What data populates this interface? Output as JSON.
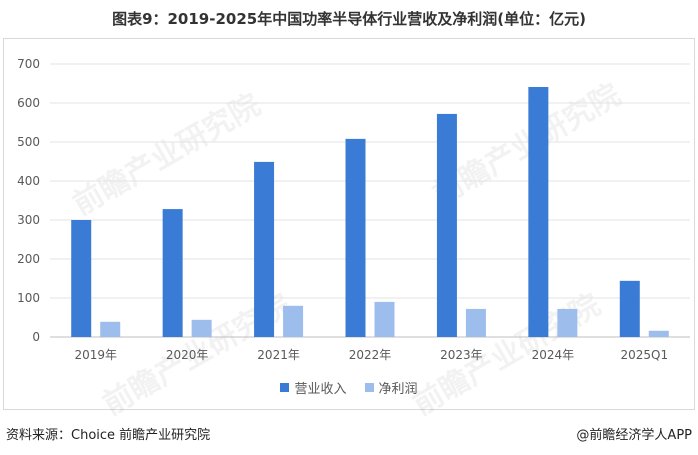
{
  "title": "图表9：2019-2025年中国功率半导体行业营收及净利润(单位：亿元)",
  "footer": {
    "source": "资料来源：Choice 前瞻产业研究院",
    "brand": "@前瞻经济学人APP"
  },
  "watermark_text": "前瞻产业研究院",
  "colors": {
    "revenue": "#3a7bd5",
    "profit": "#9dbdec",
    "grid": "#e3e3e3",
    "axis": "#bfbfbf"
  },
  "chart_data": {
    "type": "bar",
    "categories": [
      "2019年",
      "2020年",
      "2021年",
      "2022年",
      "2023年",
      "2024年",
      "2025Q1"
    ],
    "series": [
      {
        "name": "营业收入",
        "values": [
          300,
          328,
          449,
          508,
          572,
          641,
          144
        ]
      },
      {
        "name": "净利润",
        "values": [
          39,
          44,
          80,
          90,
          72,
          72,
          16
        ]
      }
    ],
    "title": "图表9：2019-2025年中国功率半导体行业营收及净利润(单位：亿元)",
    "xlabel": "",
    "ylabel": "",
    "ylim": [
      0,
      700
    ],
    "yticks": [
      0,
      100,
      200,
      300,
      400,
      500,
      600,
      700
    ],
    "grid": true,
    "legend": "bottom"
  }
}
